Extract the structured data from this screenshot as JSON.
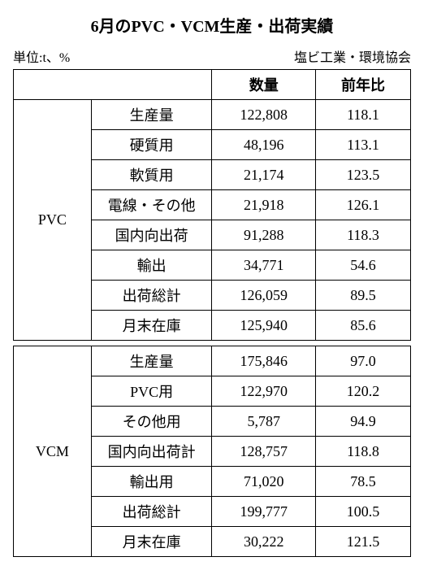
{
  "title": "6月のPVC・VCM生産・出荷実績",
  "unit_label": "単位:t、%",
  "source_label": "塩ビ工業・環境協会",
  "headers": {
    "blank1": "",
    "blank2": "",
    "qty": "数量",
    "yoy": "前年比"
  },
  "groups": [
    {
      "name": "PVC",
      "rows": [
        {
          "label": "生産量",
          "qty": "122,808",
          "yoy": "118.1"
        },
        {
          "label": "硬質用",
          "qty": "48,196",
          "yoy": "113.1"
        },
        {
          "label": "軟質用",
          "qty": "21,174",
          "yoy": "123.5"
        },
        {
          "label": "電線・その他",
          "qty": "21,918",
          "yoy": "126.1"
        },
        {
          "label": "国内向出荷",
          "qty": "91,288",
          "yoy": "118.3"
        },
        {
          "label": "輸出",
          "qty": "34,771",
          "yoy": "54.6"
        },
        {
          "label": "出荷総計",
          "qty": "126,059",
          "yoy": "89.5"
        },
        {
          "label": "月末在庫",
          "qty": "125,940",
          "yoy": "85.6"
        }
      ]
    },
    {
      "name": "VCM",
      "rows": [
        {
          "label": "生産量",
          "qty": "175,846",
          "yoy": "97.0"
        },
        {
          "label": "PVC用",
          "qty": "122,970",
          "yoy": "120.2"
        },
        {
          "label": "その他用",
          "qty": "5,787",
          "yoy": "94.9"
        },
        {
          "label": "国内向出荷計",
          "qty": "128,757",
          "yoy": "118.8"
        },
        {
          "label": "輸出用",
          "qty": "71,020",
          "yoy": "78.5"
        },
        {
          "label": "出荷総計",
          "qty": "199,777",
          "yoy": "100.5"
        },
        {
          "label": "月末在庫",
          "qty": "30,222",
          "yoy": "121.5"
        }
      ]
    }
  ]
}
